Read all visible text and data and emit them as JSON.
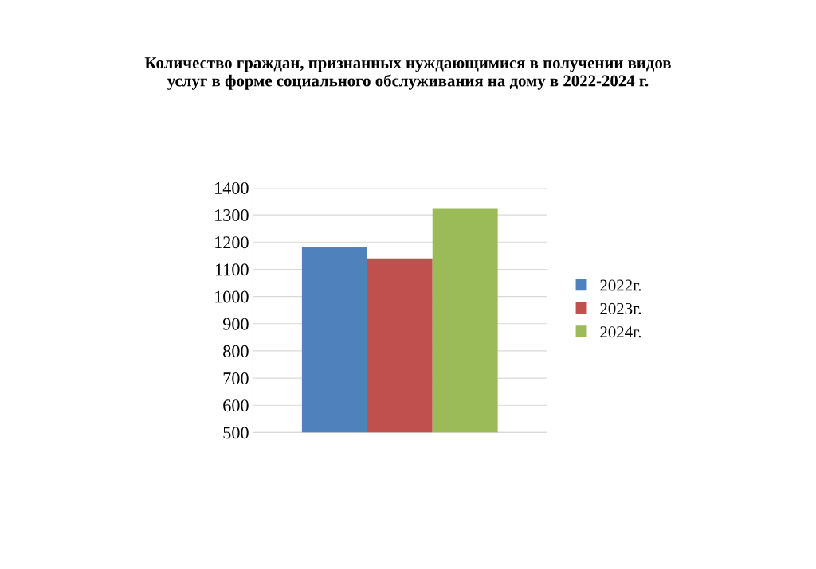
{
  "chart_data": {
    "type": "bar",
    "title": "Количество граждан, признанных нуждающимися в получении видов\nуслуг в форме социального обслуживания на дому в 2022-2024 г.",
    "categories": [
      null
    ],
    "series": [
      {
        "name": "2022г.",
        "color": "#4f81bd",
        "values": [
          1180
        ]
      },
      {
        "name": "2023г.",
        "color": "#c0504d",
        "values": [
          1140
        ]
      },
      {
        "name": "2024г.",
        "color": "#9bbb59",
        "values": [
          1325
        ]
      }
    ],
    "ylim": [
      500,
      1400
    ],
    "yticks": [
      500,
      600,
      700,
      800,
      900,
      1000,
      1100,
      1200,
      1300,
      1400
    ],
    "grid": "y",
    "legend": "right",
    "tick_labels": "y"
  }
}
